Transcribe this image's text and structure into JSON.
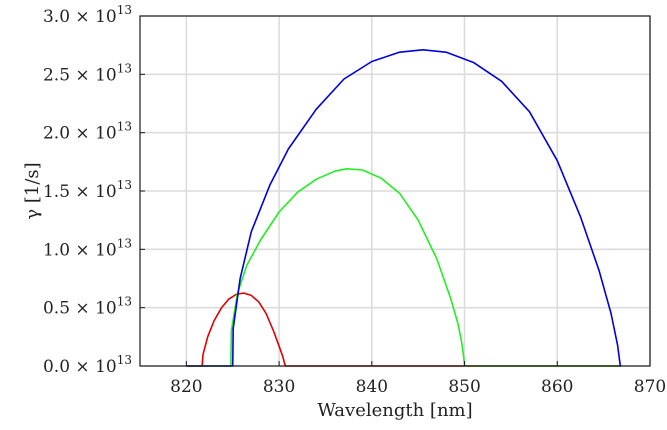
{
  "chart_data": {
    "type": "line",
    "title": "",
    "xlabel": "Wavelength [nm]",
    "ylabel": "γ [1/s]",
    "xlim": [
      815,
      870
    ],
    "ylim": [
      0,
      30000000000000.0
    ],
    "grid": true,
    "legend": "none",
    "x_ticks": [
      820,
      830,
      840,
      850,
      860,
      870
    ],
    "y_ticks": [
      {
        "mantissa": "0.0",
        "value": 0
      },
      {
        "mantissa": "0.5",
        "value": 5000000000000.0
      },
      {
        "mantissa": "1.0",
        "value": 10000000000000.0
      },
      {
        "mantissa": "1.5",
        "value": 15000000000000.0
      },
      {
        "mantissa": "2.0",
        "value": 20000000000000.0
      },
      {
        "mantissa": "2.5",
        "value": 25000000000000.0
      },
      {
        "mantissa": "3.0",
        "value": 30000000000000.0
      }
    ],
    "y_tick_multiplier": "× 10",
    "y_tick_exponent": "13",
    "series": [
      {
        "color": "#dd0000",
        "x": [
          820,
          821.7,
          821.8,
          822.3,
          823.0,
          823.8,
          824.6,
          825.4,
          826.2,
          827.0,
          827.8,
          828.6,
          829.4,
          830.0,
          830.4,
          830.6,
          830.7,
          832,
          840,
          850,
          860,
          866.8
        ],
        "y": [
          0,
          0,
          1000000000000.0,
          2500000000000.0,
          3900000000000.0,
          5000000000000.0,
          5750000000000.0,
          6150000000000.0,
          6250000000000.0,
          6050000000000.0,
          5500000000000.0,
          4500000000000.0,
          3000000000000.0,
          1700000000000.0,
          800000000000.0,
          200000000000.0,
          0,
          0,
          0,
          0,
          0,
          0
        ]
      },
      {
        "color": "#22ee22",
        "x": [
          820,
          824.8,
          824.85,
          825.5,
          826.5,
          828,
          830,
          832,
          834,
          836,
          837.3,
          839,
          841,
          843,
          845,
          847,
          848.5,
          849.3,
          849.7,
          849.9,
          850,
          860,
          866.8
        ],
        "y": [
          0,
          0,
          3000000000000.0,
          6200000000000.0,
          8600000000000.0,
          10800000000000.0,
          13200000000000.0,
          14900000000000.0,
          16000000000000.0,
          16700000000000.0,
          16900000000000.0,
          16800000000000.0,
          16100000000000.0,
          14800000000000.0,
          12500000000000.0,
          9200000000000.0,
          5800000000000.0,
          3600000000000.0,
          2000000000000.0,
          800000000000.0,
          0,
          0,
          0
        ]
      },
      {
        "color": "#0000dd",
        "x": [
          820,
          825.0,
          825.05,
          825.8,
          827,
          829,
          831,
          834,
          837,
          840,
          843,
          845.5,
          848,
          851,
          854,
          857,
          860,
          862.5,
          864.5,
          865.8,
          866.5,
          866.8,
          866.9
        ],
        "y": [
          0,
          0,
          3200000000000.0,
          7500000000000.0,
          11500000000000.0,
          15500000000000.0,
          18600000000000.0,
          22000000000000.0,
          24600000000000.0,
          26100000000000.0,
          26900000000000.0,
          27100000000000.0,
          26900000000000.0,
          26000000000000.0,
          24400000000000.0,
          21800000000000.0,
          17600000000000.0,
          12800000000000.0,
          8200000000000.0,
          4500000000000.0,
          1800000000000.0,
          0,
          0
        ]
      }
    ]
  }
}
